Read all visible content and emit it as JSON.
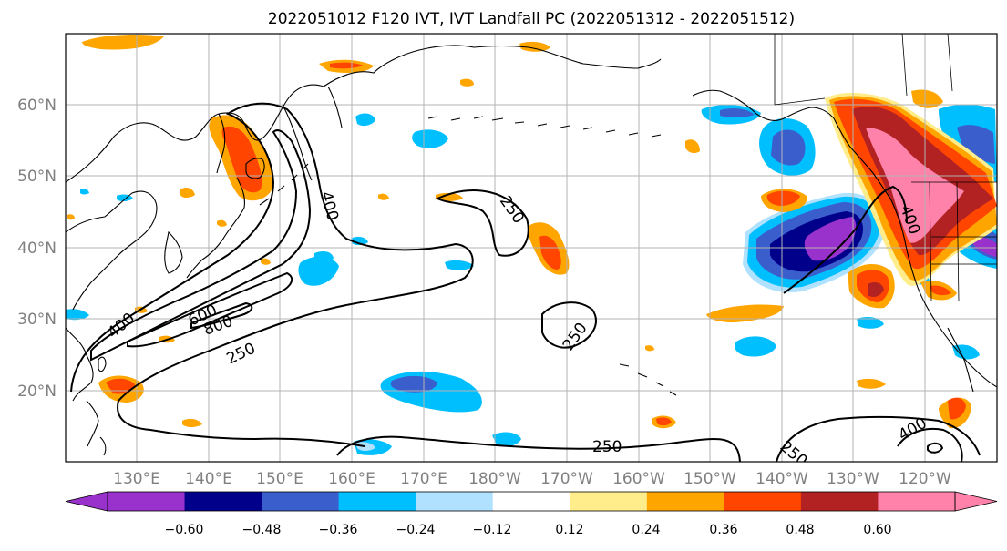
{
  "title": "2022051012 F120 IVT, IVT Landfall PC (2022051312 - 2022051512)",
  "lat_labels": [
    "60°N",
    "50°N",
    "40°N",
    "30°N",
    "20°N"
  ],
  "lon_labels": [
    "130°E",
    "140°E",
    "150°E",
    "160°E",
    "170°E",
    "180°W",
    "170°W",
    "160°W",
    "150°W",
    "140°W",
    "130°W",
    "120°W"
  ],
  "map_extent": {
    "lon_min": 120,
    "lon_max": 250,
    "lat_min": 10,
    "lat_max": 70
  },
  "ivt_contour_labels": [
    "400",
    "250",
    "600",
    "800",
    "400",
    "250",
    "250",
    "250",
    "400",
    "250",
    "400"
  ],
  "colorbar": {
    "ticks": [
      "−0.60",
      "−0.48",
      "−0.36",
      "−0.24",
      "−0.12",
      "0.12",
      "0.24",
      "0.36",
      "0.48",
      "0.60"
    ],
    "colors": [
      "#9932cc",
      "#00008b",
      "#3a5fcd",
      "#00bfff",
      "#b0e2ff",
      "#ffffff",
      "#ffec8b",
      "#ffa500",
      "#ff4500",
      "#b22222",
      "#ff82ab",
      "#ff82ab"
    ]
  }
}
